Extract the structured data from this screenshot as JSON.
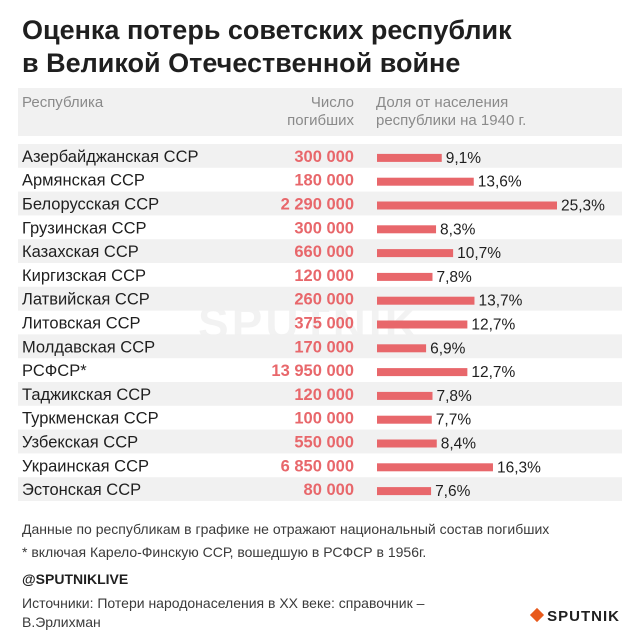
{
  "header": {
    "title_line1": "Оценка потерь советских республик",
    "title_line2": "в Великой Отечественной войне"
  },
  "columns": {
    "republic": "Республика",
    "deaths_line1": "Число",
    "deaths_line2": "погибших",
    "share_line1": "Доля от населения",
    "share_line2": "республики на 1940 г."
  },
  "chart_data": {
    "type": "bar",
    "orientation": "horizontal",
    "categories": [
      "Азербайджанская ССР",
      "Армянская ССР",
      "Белорусская ССР",
      "Грузинская ССР",
      "Казахская ССР",
      "Киргизская ССР",
      "Латвийская ССР",
      "Литовская ССР",
      "Молдавская ССР",
      "РСФСР*",
      "Таджикская ССР",
      "Туркменская ССР",
      "Узбекская ССР",
      "Украинская ССР",
      "Эстонская ССР"
    ],
    "deaths_labels": [
      "300 000",
      "180 000",
      "2 290 000",
      "300 000",
      "660 000",
      "120 000",
      "260 000",
      "375 000",
      "170 000",
      "13 950 000",
      "120 000",
      "100 000",
      "550 000",
      "6 850 000",
      "80 000"
    ],
    "series": [
      {
        "values": [
          9.1,
          13.6,
          25.3,
          8.3,
          10.7,
          7.8,
          13.7,
          12.7,
          6.9,
          12.7,
          7.8,
          7.7,
          8.4,
          16.3,
          7.6
        ],
        "labels": [
          "9,1%",
          "13,6%",
          "25,3%",
          "8,3%",
          "10,7%",
          "7,8%",
          "13,7%",
          "12,7%",
          "6,9%",
          "12,7%",
          "7,8%",
          "7,7%",
          "8,4%",
          "16,3%",
          "7,6%"
        ]
      }
    ],
    "xlim": [
      0,
      25.3
    ],
    "colors": {
      "bar": "#e8676b",
      "deaths": "#e8676b",
      "row_band": "#f1f1f1",
      "text": "#1f1f1f"
    }
  },
  "notes": {
    "line1": "Данные по республикам в графике не отражают национальный состав погибших",
    "line2": "* включая Карело-Финскую ССР, вошедшую в РСФСР в 1956г."
  },
  "footer": {
    "social": "@SPUTNIKLIVE",
    "sources": "Источники: Потери народонаселения в XX веке: справочник – В.Эрлихман",
    "logo": "SPUTNIK"
  },
  "watermark": "SPUTNIK"
}
